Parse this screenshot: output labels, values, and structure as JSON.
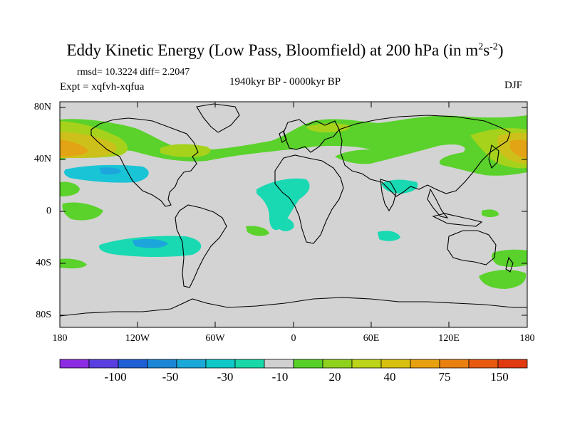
{
  "title": "Eddy Kinetic Energy (Low Pass, Bloomfield) at 200 hPa (in m",
  "title_unit_exp1": "2",
  "title_unit_s": "s",
  "title_unit_exp2": "-2",
  "title_close": ")",
  "stats": "rmsd= 10.3224 diff= 2.2047",
  "expt": "Expt = xqfvh-xqfua",
  "period": "1940kyr BP - 0000kyr BP",
  "season": "DJF",
  "lat_labels": [
    "80N",
    "40N",
    "0",
    "40S",
    "80S"
  ],
  "lon_labels": [
    "180",
    "120W",
    "60W",
    "0",
    "60E",
    "120E",
    "180"
  ],
  "colorbar": {
    "labels": [
      "-100",
      "-50",
      "-30",
      "-10",
      "20",
      "40",
      "75",
      "150"
    ],
    "colors": [
      "#8b2be2",
      "#5a3ee0",
      "#1f5fd6",
      "#1c86d6",
      "#19a8d8",
      "#10c8c8",
      "#19d8a8",
      "#d0d0d0",
      "#58d02a",
      "#8fd21e",
      "#bcd41a",
      "#d8c010",
      "#e8a010",
      "#ea8010",
      "#e85a10",
      "#e03a10"
    ]
  },
  "colors": {
    "land_bg": "#d3d3d3",
    "green": "#5ad22b",
    "yellowgreen": "#a6d21c",
    "yellow": "#cec01a",
    "orange": "#e2a414",
    "cyan": "#19d9b3",
    "lightblue": "#19c4d6",
    "blue": "#1ca6dc"
  }
}
